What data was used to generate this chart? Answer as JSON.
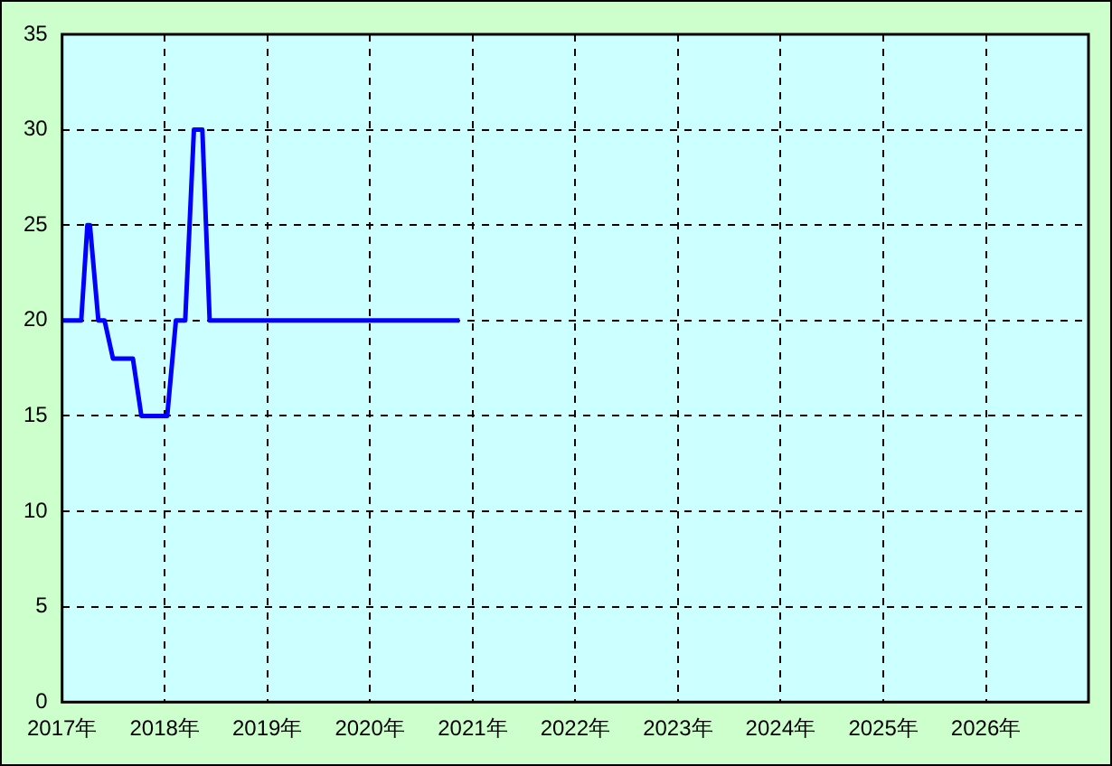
{
  "chart_data": {
    "type": "line",
    "x": [
      "2017-01-01",
      "2017-03-10",
      "2017-04-01",
      "2017-04-10",
      "2017-05-10",
      "2017-06-01",
      "2017-07-01",
      "2017-09-10",
      "2017-10-10",
      "2018-01-10",
      "2018-02-10",
      "2018-03-15",
      "2018-04-15",
      "2018-05-15",
      "2018-06-10",
      "2020-11-15"
    ],
    "series": [
      {
        "color": "#0000ff",
        "values": [
          20,
          20,
          25,
          25,
          20,
          20,
          18,
          18,
          15,
          15,
          20,
          20,
          30,
          30,
          20,
          20
        ]
      }
    ],
    "xlim": [
      "2017-01-01",
      "2027-01-01"
    ],
    "xticks": [
      {
        "value": "2017-01-01",
        "label": "2017年"
      },
      {
        "value": "2018-01-01",
        "label": "2018年"
      },
      {
        "value": "2019-01-01",
        "label": "2019年"
      },
      {
        "value": "2020-01-01",
        "label": "2020年"
      },
      {
        "value": "2021-01-01",
        "label": "2021年"
      },
      {
        "value": "2022-01-01",
        "label": "2022年"
      },
      {
        "value": "2023-01-01",
        "label": "2023年"
      },
      {
        "value": "2024-01-01",
        "label": "2024年"
      },
      {
        "value": "2025-01-01",
        "label": "2025年"
      },
      {
        "value": "2026-01-01",
        "label": "2026年"
      }
    ],
    "ylim": [
      0,
      35
    ],
    "yticks": [
      0,
      5,
      10,
      15,
      20,
      25,
      30,
      35
    ],
    "grid": true,
    "legend": false,
    "marker": "none",
    "line_style": "solid"
  }
}
